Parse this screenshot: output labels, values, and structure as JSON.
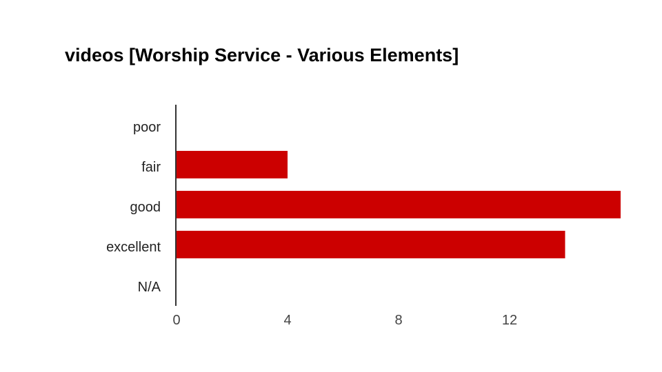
{
  "chart_data": {
    "type": "bar",
    "orientation": "horizontal",
    "title": "videos [Worship Service - Various Elements]",
    "categories": [
      "poor",
      "fair",
      "good",
      "excellent",
      "N/A"
    ],
    "values": [
      0,
      4,
      16,
      14,
      0
    ],
    "xlabel": "",
    "ylabel": "",
    "xlim": [
      0,
      16
    ],
    "x_ticks": [
      0,
      4,
      8,
      12
    ],
    "grid": false,
    "legend": "none",
    "bar_color": "#cc0000"
  }
}
